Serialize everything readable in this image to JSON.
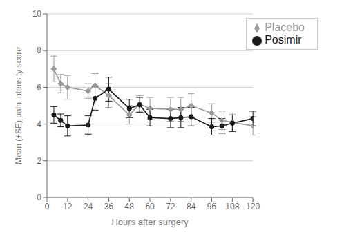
{
  "chart_data": {
    "type": "line",
    "xlabel": "Hours after surgery",
    "ylabel": "Mean (±SE) pain intensity score",
    "x": [
      4,
      8,
      12,
      24,
      28,
      36,
      48,
      54,
      60,
      72,
      78,
      84,
      96,
      102,
      108,
      120
    ],
    "series": [
      {
        "name": "Placebo",
        "color": "#999999",
        "marker": "diamond",
        "values": [
          7.0,
          6.2,
          6.0,
          5.8,
          6.1,
          5.55,
          4.5,
          5.1,
          4.85,
          4.8,
          4.8,
          5.0,
          4.6,
          4.2,
          4.1,
          3.9
        ],
        "errors": [
          0.7,
          0.5,
          0.65,
          0.4,
          0.65,
          0.65,
          0.5,
          0.45,
          0.6,
          0.65,
          0.65,
          0.65,
          0.5,
          0.5,
          0.5,
          0.5
        ]
      },
      {
        "name": "Posimir",
        "color": "#1a1a1a",
        "marker": "circle",
        "values": [
          4.5,
          4.2,
          3.9,
          3.95,
          5.4,
          5.9,
          4.85,
          5.05,
          4.35,
          4.3,
          4.35,
          4.4,
          3.85,
          3.9,
          4.05,
          4.3
        ],
        "errors": [
          0.45,
          0.35,
          0.55,
          0.5,
          0.65,
          0.65,
          0.5,
          0.4,
          0.45,
          0.5,
          0.55,
          0.5,
          0.45,
          0.4,
          0.45,
          0.4
        ]
      }
    ],
    "xlim": [
      0,
      120
    ],
    "ylim": [
      0,
      10
    ],
    "xticks": [
      0,
      12,
      24,
      36,
      48,
      60,
      72,
      84,
      96,
      108,
      120
    ],
    "yticks": [
      0,
      2,
      4,
      6,
      8,
      10
    ],
    "grid": true,
    "legend": "upper right"
  }
}
